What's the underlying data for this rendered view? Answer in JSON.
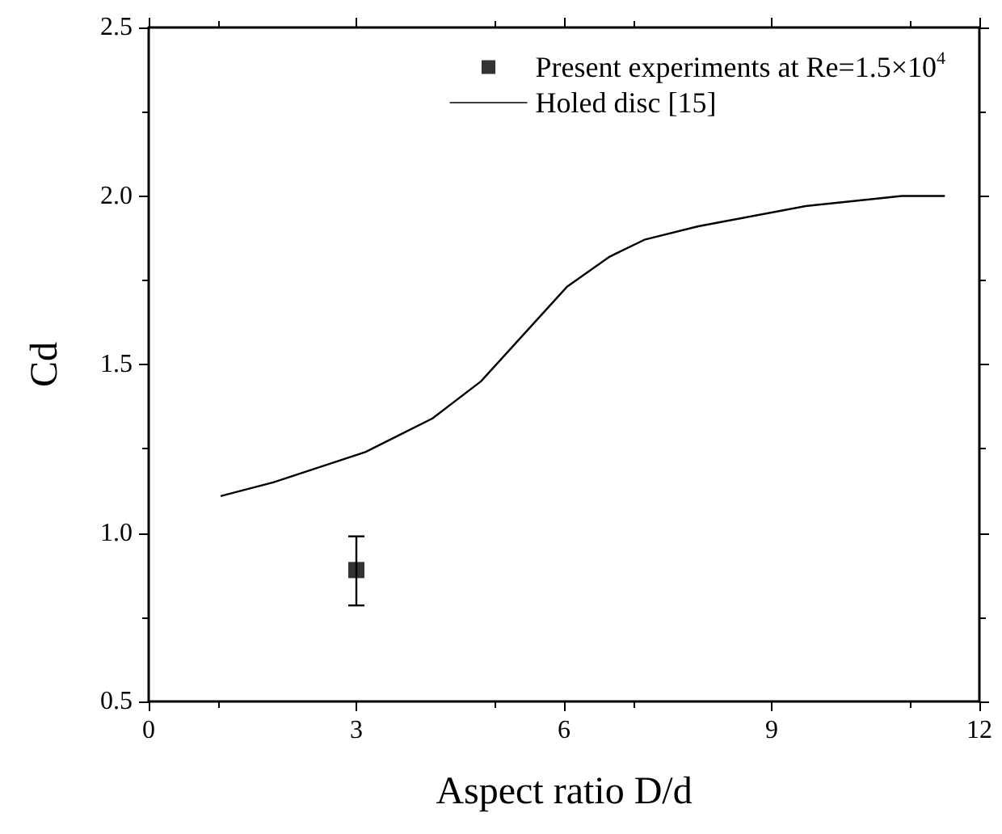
{
  "chart_data": {
    "type": "line",
    "xlabel": "Aspect ratio D/d",
    "ylabel": "Cd",
    "xlim": [
      0,
      12
    ],
    "xticks": [
      0,
      3,
      6,
      9,
      12
    ],
    "ylim": [
      0.5,
      2.5
    ],
    "yticks": [
      0.5,
      {
        "value": 1,
        "label": "1.0"
      },
      1.5,
      {
        "value": 2,
        "label": "2.0"
      },
      2.5
    ],
    "grid": false,
    "legend": "top right",
    "series": [
      {
        "name": "Present experiments at Re=1.5×10$^{4}$",
        "type": "scatter",
        "marker": "square",
        "color": "#000000",
        "x": [
          3
        ],
        "values": [
          0.89
        ],
        "errors": [
          [
            0.785,
            0.99
          ]
        ]
      },
      {
        "name": "Holed disc [15]",
        "type": "line",
        "marker": "none",
        "line_style": "solid",
        "color": "#000000",
        "x": [
          1.05,
          1.8,
          3.13,
          4.1,
          4.8,
          6.04,
          6.66,
          7.16,
          7.94,
          9.49,
          10.88,
          11.49
        ],
        "values": [
          1.11,
          1.15,
          1.24,
          1.34,
          1.45,
          1.73,
          1.82,
          1.87,
          1.91,
          1.97,
          2.0,
          2.0
        ]
      }
    ]
  }
}
